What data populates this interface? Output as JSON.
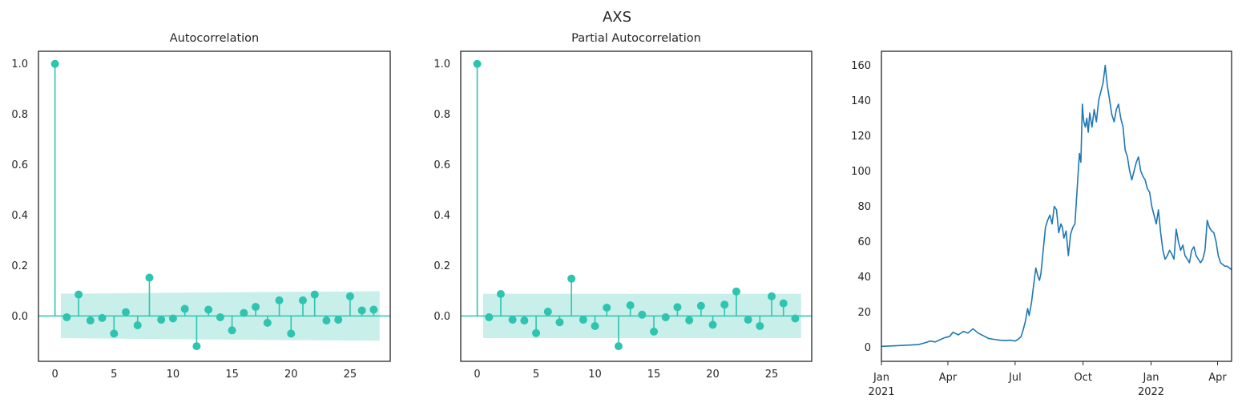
{
  "figure_title": "AXS",
  "colors": {
    "stem": "#2ec4b0",
    "band": "#c8efea",
    "line": "#1f77b4",
    "axes": "#262626"
  },
  "chart_data": [
    {
      "type": "stem",
      "title": "Autocorrelation",
      "xlim": [
        -1.4,
        28.4
      ],
      "ylim": [
        -0.18,
        1.05
      ],
      "xticks": [
        0,
        5,
        10,
        15,
        20,
        25
      ],
      "yticks": [
        0.0,
        0.2,
        0.4,
        0.6,
        0.8,
        1.0
      ],
      "ytick_labels": [
        "0.0",
        "0.2",
        "0.4",
        "0.6",
        "0.8",
        "1.0"
      ],
      "lags": [
        0,
        1,
        2,
        3,
        4,
        5,
        6,
        7,
        8,
        9,
        10,
        11,
        12,
        13,
        14,
        15,
        16,
        17,
        18,
        19,
        20,
        21,
        22,
        23,
        24,
        25,
        26,
        27
      ],
      "values": [
        1.0,
        -0.005,
        0.085,
        -0.018,
        -0.008,
        -0.07,
        0.015,
        -0.037,
        0.152,
        -0.015,
        -0.01,
        0.028,
        -0.12,
        0.025,
        -0.005,
        -0.057,
        0.012,
        0.036,
        -0.027,
        0.062,
        -0.07,
        0.062,
        0.085,
        -0.018,
        -0.015,
        0.078,
        0.022,
        0.025
      ],
      "confidence_band": {
        "lags": [
          0.5,
          12,
          27.5
        ],
        "upper": [
          0.088,
          0.093,
          0.098
        ],
        "lower": [
          -0.088,
          -0.093,
          -0.098
        ]
      }
    },
    {
      "type": "stem",
      "title": "Partial Autocorrelation",
      "xlim": [
        -1.4,
        28.4
      ],
      "ylim": [
        -0.18,
        1.05
      ],
      "xticks": [
        0,
        5,
        10,
        15,
        20,
        25
      ],
      "yticks": [
        0.0,
        0.2,
        0.4,
        0.6,
        0.8,
        1.0
      ],
      "ytick_labels": [
        "0.0",
        "0.2",
        "0.4",
        "0.6",
        "0.8",
        "1.0"
      ],
      "lags": [
        0,
        1,
        2,
        3,
        4,
        5,
        6,
        7,
        8,
        9,
        10,
        11,
        12,
        13,
        14,
        15,
        16,
        17,
        18,
        19,
        20,
        21,
        22,
        23,
        24,
        25,
        26,
        27
      ],
      "values": [
        1.0,
        -0.005,
        0.087,
        -0.015,
        -0.018,
        -0.068,
        0.017,
        -0.025,
        0.148,
        -0.015,
        -0.04,
        0.033,
        -0.12,
        0.042,
        0.005,
        -0.062,
        -0.005,
        0.035,
        -0.017,
        0.04,
        -0.035,
        0.045,
        0.097,
        -0.015,
        -0.04,
        0.078,
        0.05,
        -0.01
      ],
      "confidence_band": {
        "lags": [
          0.5,
          27.5
        ],
        "upper": [
          0.088,
          0.088
        ],
        "lower": [
          -0.088,
          -0.088
        ]
      }
    },
    {
      "type": "line",
      "title": "",
      "xlim": [
        "2021-01-01",
        "2022-04-20"
      ],
      "ylim": [
        -8,
        168
      ],
      "yticks": [
        0,
        20,
        40,
        60,
        80,
        100,
        120,
        140,
        160
      ],
      "xticks": [
        {
          "date": "2021-01-01",
          "label": "Jan",
          "sublabel": "2021"
        },
        {
          "date": "2021-04-01",
          "label": "Apr",
          "sublabel": ""
        },
        {
          "date": "2021-07-01",
          "label": "Jul",
          "sublabel": ""
        },
        {
          "date": "2021-10-01",
          "label": "Oct",
          "sublabel": ""
        },
        {
          "date": "2022-01-01",
          "label": "Jan",
          "sublabel": "2022"
        },
        {
          "date": "2022-04-01",
          "label": "Apr",
          "sublabel": ""
        }
      ],
      "x": [
        "2021-01-01",
        "2021-01-20",
        "2021-02-05",
        "2021-02-20",
        "2021-03-01",
        "2021-03-08",
        "2021-03-15",
        "2021-03-20",
        "2021-03-28",
        "2021-04-03",
        "2021-04-08",
        "2021-04-15",
        "2021-04-22",
        "2021-04-28",
        "2021-05-05",
        "2021-05-12",
        "2021-05-19",
        "2021-05-26",
        "2021-06-02",
        "2021-06-10",
        "2021-06-18",
        "2021-06-25",
        "2021-07-01",
        "2021-07-05",
        "2021-07-09",
        "2021-07-12",
        "2021-07-15",
        "2021-07-18",
        "2021-07-20",
        "2021-07-23",
        "2021-07-26",
        "2021-07-29",
        "2021-08-01",
        "2021-08-03",
        "2021-08-05",
        "2021-08-08",
        "2021-08-11",
        "2021-08-14",
        "2021-08-17",
        "2021-08-20",
        "2021-08-23",
        "2021-08-26",
        "2021-08-29",
        "2021-09-01",
        "2021-09-03",
        "2021-09-05",
        "2021-09-08",
        "2021-09-11",
        "2021-09-14",
        "2021-09-17",
        "2021-09-20",
        "2021-09-23",
        "2021-09-26",
        "2021-09-28",
        "2021-09-30",
        "2021-10-01",
        "2021-10-02",
        "2021-10-04",
        "2021-10-06",
        "2021-10-08",
        "2021-10-10",
        "2021-10-13",
        "2021-10-16",
        "2021-10-19",
        "2021-10-22",
        "2021-10-25",
        "2021-10-28",
        "2021-10-31",
        "2021-11-03",
        "2021-11-06",
        "2021-11-09",
        "2021-11-12",
        "2021-11-15",
        "2021-11-18",
        "2021-11-21",
        "2021-11-24",
        "2021-11-27",
        "2021-11-30",
        "2021-12-03",
        "2021-12-06",
        "2021-12-09",
        "2021-12-12",
        "2021-12-15",
        "2021-12-18",
        "2021-12-21",
        "2021-12-24",
        "2021-12-27",
        "2021-12-30",
        "2022-01-02",
        "2022-01-05",
        "2022-01-08",
        "2022-01-11",
        "2022-01-14",
        "2022-01-17",
        "2022-01-20",
        "2022-01-23",
        "2022-01-26",
        "2022-01-29",
        "2022-02-01",
        "2022-02-04",
        "2022-02-07",
        "2022-02-10",
        "2022-02-13",
        "2022-02-16",
        "2022-02-19",
        "2022-02-22",
        "2022-02-25",
        "2022-02-28",
        "2022-03-03",
        "2022-03-06",
        "2022-03-09",
        "2022-03-12",
        "2022-03-15",
        "2022-03-18",
        "2022-03-21",
        "2022-03-24",
        "2022-03-27",
        "2022-03-30",
        "2022-04-02",
        "2022-04-05",
        "2022-04-08",
        "2022-04-11",
        "2022-04-14",
        "2022-04-17",
        "2022-04-20"
      ],
      "y": [
        0.5,
        0.8,
        1.2,
        1.5,
        2.5,
        3.5,
        3.0,
        4.0,
        5.5,
        6.0,
        8.5,
        7.0,
        9.0,
        8.0,
        10.5,
        8.0,
        6.5,
        5.0,
        4.5,
        4.0,
        3.8,
        4.0,
        3.5,
        4.5,
        6.0,
        10.0,
        15.0,
        22.0,
        18.0,
        25.0,
        35.0,
        45.0,
        40.0,
        38.0,
        42.0,
        55.0,
        68.0,
        72.0,
        75.0,
        70.0,
        80.0,
        78.0,
        65.0,
        70.0,
        68.0,
        62.0,
        66.0,
        52.0,
        64.0,
        68.0,
        70.0,
        90.0,
        110.0,
        105.0,
        138.0,
        132.0,
        128.0,
        125.0,
        130.0,
        122.0,
        133.0,
        125.0,
        135.0,
        128.0,
        140.0,
        145.0,
        150.0,
        160.0,
        148.0,
        140.0,
        132.0,
        128.0,
        135.0,
        138.0,
        130.0,
        125.0,
        112.0,
        108.0,
        100.0,
        95.0,
        100.0,
        105.0,
        108.0,
        100.0,
        97.0,
        95.0,
        90.0,
        88.0,
        80.0,
        75.0,
        70.0,
        78.0,
        65.0,
        55.0,
        50.0,
        52.0,
        55.0,
        53.0,
        50.0,
        67.0,
        60.0,
        55.0,
        58.0,
        52.0,
        50.0,
        48.0,
        55.0,
        57.0,
        52.0,
        50.0,
        48.0,
        50.0,
        55.0,
        72.0,
        68.0,
        66.0,
        65.0,
        60.0,
        52.0,
        48.0,
        47.0,
        46.0,
        46.0,
        45.0,
        44.0
      ]
    }
  ]
}
